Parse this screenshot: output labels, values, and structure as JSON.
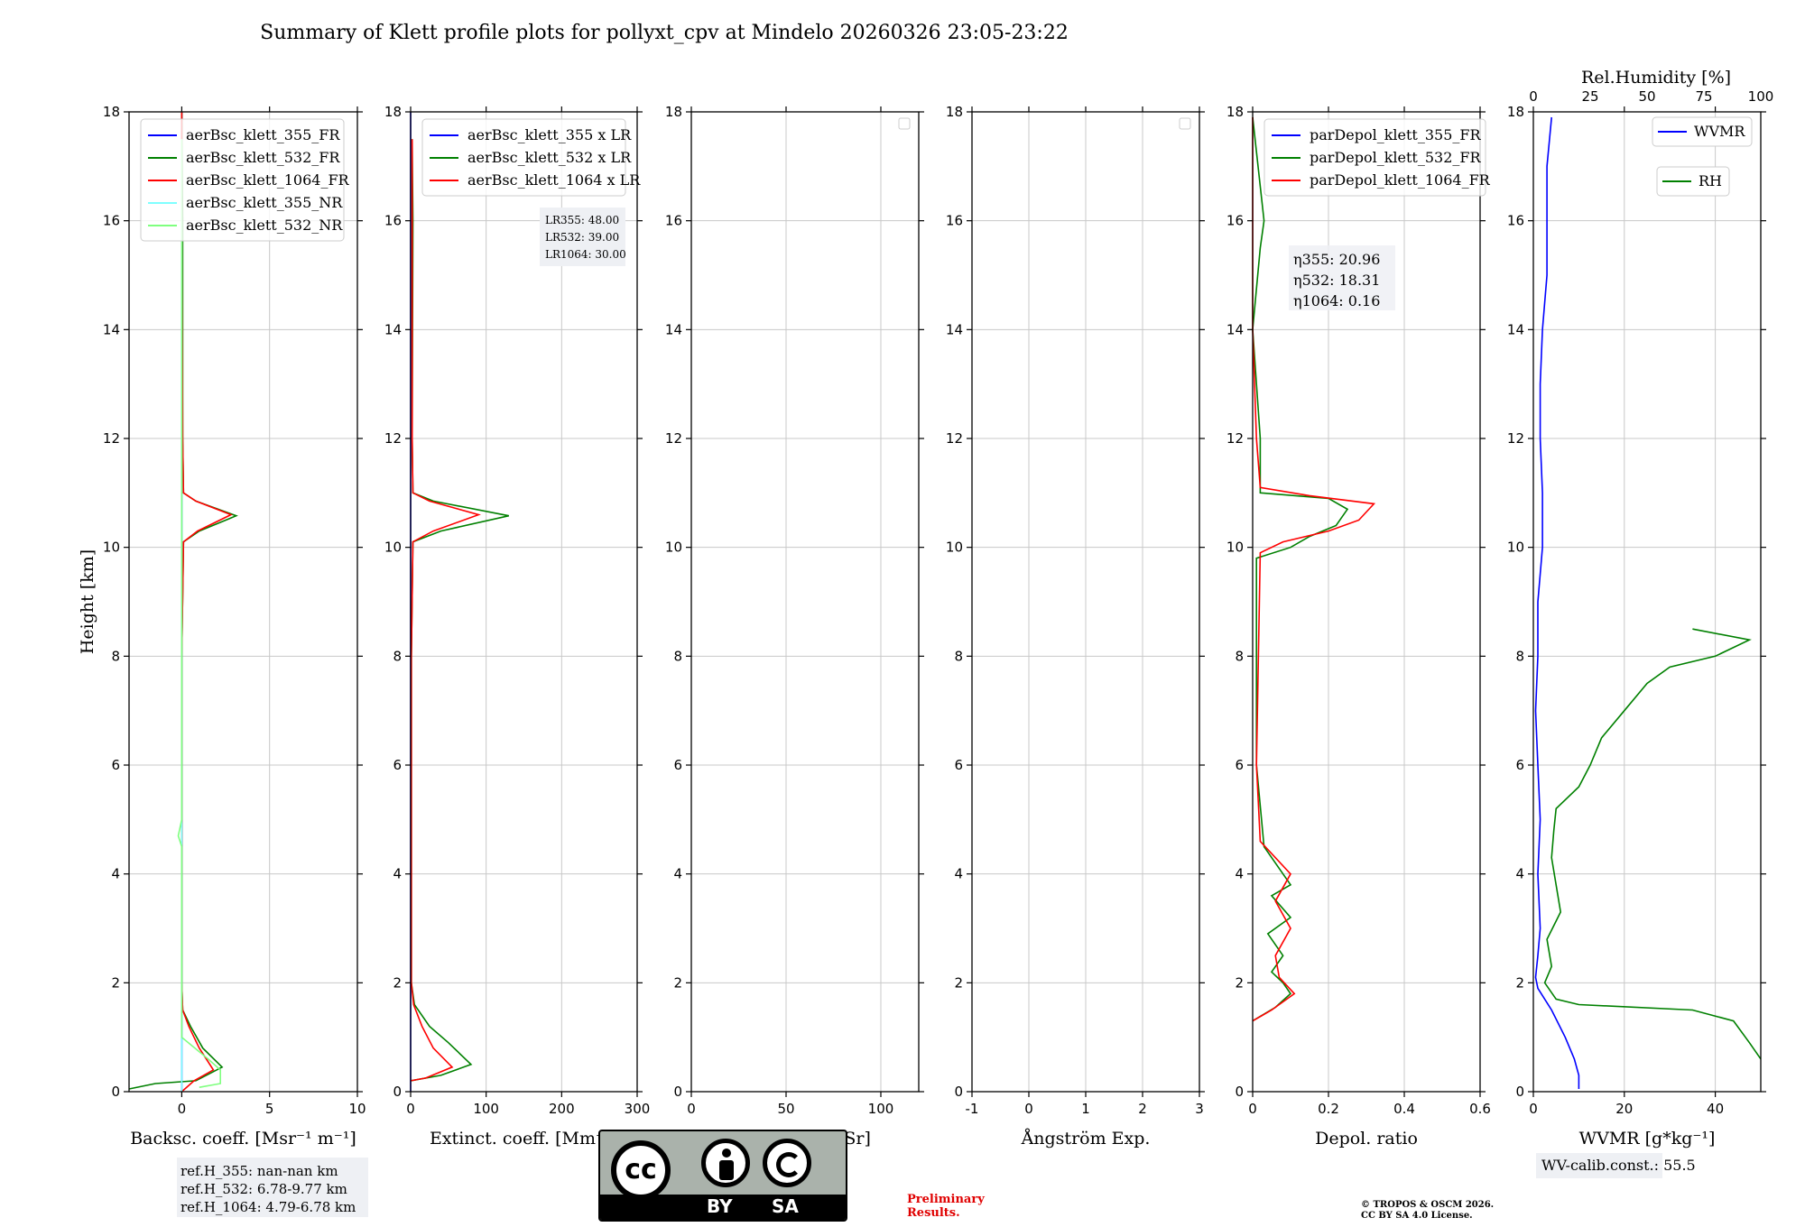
{
  "title": "Summary of Klett profile plots for pollyxt_cpv at Mindelo 20260326 23:05-23:22",
  "colors": {
    "blue": "#0000ff",
    "green": "#008000",
    "red": "#ff0000",
    "cyan": "#7fffff",
    "lightgreen": "#7fff7f",
    "grid": "#c8c8c8"
  },
  "chart_data": [
    {
      "type": "line",
      "id": "backscatter",
      "xlabel": "Backsc. coeff. [Msr⁻¹ m⁻¹]",
      "ylabel": "Height [km]",
      "xlim": [
        -3,
        10
      ],
      "ylim": [
        0,
        18
      ],
      "xticks": [
        0,
        5,
        10
      ],
      "yticks": [
        0,
        2,
        4,
        6,
        8,
        10,
        12,
        14,
        16,
        18
      ],
      "legend": {
        "position": "top-left",
        "entries": [
          "aerBsc_klett_355_FR",
          "aerBsc_klett_532_FR",
          "aerBsc_klett_1064_FR",
          "aerBsc_klett_355_NR",
          "aerBsc_klett_532_NR"
        ]
      },
      "series": [
        {
          "name": "aerBsc_klett_355_FR",
          "color": "blue",
          "points": [
            [
              0,
              18
            ],
            [
              0,
              0
            ]
          ]
        },
        {
          "name": "aerBsc_klett_532_FR",
          "color": "green",
          "points": [
            [
              0,
              18
            ],
            [
              0.05,
              16
            ],
            [
              0.05,
              12
            ],
            [
              0.1,
              11
            ],
            [
              0.8,
              10.85
            ],
            [
              3.1,
              10.58
            ],
            [
              1.0,
              10.3
            ],
            [
              0.1,
              10.1
            ],
            [
              0,
              8
            ],
            [
              0,
              2
            ],
            [
              0.05,
              1.5
            ],
            [
              0.5,
              1.2
            ],
            [
              1.2,
              0.8
            ],
            [
              2.3,
              0.45
            ],
            [
              0.8,
              0.2
            ],
            [
              -1.5,
              0.15
            ],
            [
              -3,
              0.05
            ]
          ]
        },
        {
          "name": "aerBsc_klett_1064_FR",
          "color": "red",
          "points": [
            [
              0,
              18
            ],
            [
              0,
              16
            ],
            [
              0.05,
              12
            ],
            [
              0.1,
              11
            ],
            [
              0.8,
              10.85
            ],
            [
              2.8,
              10.6
            ],
            [
              0.9,
              10.3
            ],
            [
              0.1,
              10.1
            ],
            [
              0,
              8
            ],
            [
              0,
              2
            ],
            [
              0.05,
              1.5
            ],
            [
              0.4,
              1.2
            ],
            [
              1.0,
              0.8
            ],
            [
              1.8,
              0.4
            ],
            [
              0.7,
              0.2
            ],
            [
              0,
              0
            ]
          ]
        },
        {
          "name": "aerBsc_klett_355_NR",
          "color": "cyan",
          "points": [
            [
              0,
              17.5
            ],
            [
              0,
              0
            ]
          ]
        },
        {
          "name": "aerBsc_klett_532_NR",
          "color": "lightgreen",
          "points": [
            [
              0,
              17.5
            ],
            [
              0,
              5
            ],
            [
              -0.2,
              4.7
            ],
            [
              0,
              4.5
            ],
            [
              0,
              1
            ],
            [
              1.5,
              0.6
            ],
            [
              2.2,
              0.4
            ],
            [
              2.2,
              0.15
            ],
            [
              1,
              0.08
            ]
          ]
        }
      ],
      "annotation": [
        "ref.H_355: nan-nan km",
        "ref.H_532: 6.78-9.77 km",
        "ref.H_1064: 4.79-6.78 km"
      ]
    },
    {
      "type": "line",
      "id": "extinction",
      "xlabel": "Extinct. coeff. [Mm⁻¹]",
      "xlim": [
        0,
        300
      ],
      "ylim": [
        0,
        18
      ],
      "xticks": [
        0,
        100,
        200,
        300
      ],
      "legend": {
        "position": "top-left",
        "entries": [
          "aerBsc_klett_355 x LR",
          "aerBsc_klett_532 x LR",
          "aerBsc_klett_1064 x LR"
        ]
      },
      "series": [
        {
          "name": "aerBsc_klett_355 x LR",
          "color": "blue",
          "points": [
            [
              0,
              18
            ],
            [
              0,
              0
            ]
          ]
        },
        {
          "name": "aerBsc_klett_532 x LR",
          "color": "green",
          "points": [
            [
              2,
              17.5
            ],
            [
              3,
              16
            ],
            [
              2,
              12
            ],
            [
              3,
              11
            ],
            [
              30,
              10.85
            ],
            [
              130,
              10.58
            ],
            [
              40,
              10.3
            ],
            [
              3,
              10.1
            ],
            [
              1,
              8
            ],
            [
              1,
              2
            ],
            [
              5,
              1.6
            ],
            [
              25,
              1.2
            ],
            [
              50,
              0.9
            ],
            [
              80,
              0.5
            ],
            [
              40,
              0.3
            ],
            [
              0,
              0.2
            ]
          ]
        },
        {
          "name": "aerBsc_klett_1064 x LR",
          "color": "red",
          "points": [
            [
              2,
              17.5
            ],
            [
              2,
              16
            ],
            [
              2,
              12
            ],
            [
              3,
              11
            ],
            [
              25,
              10.85
            ],
            [
              90,
              10.6
            ],
            [
              30,
              10.3
            ],
            [
              3,
              10.1
            ],
            [
              1,
              8
            ],
            [
              1,
              2
            ],
            [
              4,
              1.6
            ],
            [
              15,
              1.2
            ],
            [
              30,
              0.8
            ],
            [
              55,
              0.45
            ],
            [
              20,
              0.25
            ],
            [
              0,
              0.2
            ]
          ]
        }
      ],
      "annotation": [
        "LR355: 48.00",
        "LR532: 39.00",
        "LR1064: 30.00"
      ]
    },
    {
      "type": "line",
      "id": "lidarratio",
      "xlabel": "Lidar ratio [Sr]",
      "xlim": [
        0,
        120
      ],
      "ylim": [
        0,
        18
      ],
      "xticks": [
        0,
        50,
        100
      ],
      "series": []
    },
    {
      "type": "line",
      "id": "angstrom",
      "xlabel": "Ångström Exp.",
      "xlim": [
        -1,
        3
      ],
      "ylim": [
        0,
        18
      ],
      "xticks": [
        -1,
        0,
        1,
        2,
        3
      ],
      "series": []
    },
    {
      "type": "line",
      "id": "depol",
      "xlabel": "Depol. ratio",
      "xlim": [
        0,
        0.6
      ],
      "ylim": [
        0,
        18
      ],
      "xticks": [
        0.0,
        0.2,
        0.4,
        0.6
      ],
      "legend": {
        "position": "top-left",
        "entries": [
          "parDepol_klett_355_FR",
          "parDepol_klett_532_FR",
          "parDepol_klett_1064_FR"
        ]
      },
      "series": [
        {
          "name": "parDepol_klett_355_FR",
          "color": "blue",
          "points": []
        },
        {
          "name": "parDepol_klett_532_FR",
          "color": "green",
          "points": [
            [
              0,
              1.3
            ],
            [
              0.06,
              1.55
            ],
            [
              0.1,
              1.8
            ],
            [
              0.08,
              2.0
            ],
            [
              0.05,
              2.2
            ],
            [
              0.08,
              2.5
            ],
            [
              0.04,
              2.9
            ],
            [
              0.1,
              3.2
            ],
            [
              0.05,
              3.6
            ],
            [
              0.1,
              3.8
            ],
            [
              0.03,
              4.5
            ],
            [
              0.01,
              6
            ],
            [
              0.01,
              9.8
            ],
            [
              0.1,
              10.0
            ],
            [
              0.15,
              10.2
            ],
            [
              0.22,
              10.4
            ],
            [
              0.25,
              10.7
            ],
            [
              0.2,
              10.9
            ],
            [
              0.02,
              11
            ],
            [
              0.02,
              12
            ],
            [
              0,
              14
            ],
            [
              0.02,
              15.5
            ],
            [
              0.03,
              16
            ],
            [
              0,
              17.9
            ]
          ]
        },
        {
          "name": "parDepol_klett_1064_FR",
          "color": "red",
          "points": [
            [
              0,
              1.3
            ],
            [
              0.05,
              1.5
            ],
            [
              0.11,
              1.8
            ],
            [
              0.07,
              2.1
            ],
            [
              0.06,
              2.5
            ],
            [
              0.1,
              3.0
            ],
            [
              0.06,
              3.5
            ],
            [
              0.1,
              4.0
            ],
            [
              0.02,
              4.6
            ],
            [
              0.01,
              6
            ],
            [
              0.02,
              9.9
            ],
            [
              0.08,
              10.1
            ],
            [
              0.2,
              10.3
            ],
            [
              0.28,
              10.5
            ],
            [
              0.32,
              10.8
            ],
            [
              0.15,
              10.95
            ],
            [
              0.02,
              11.1
            ],
            [
              0.01,
              12
            ],
            [
              0,
              14
            ],
            [
              0,
              17.9
            ]
          ]
        }
      ],
      "annotation": [
        "η355: 20.96",
        "η532: 18.31",
        "η1064: 0.16"
      ]
    },
    {
      "type": "line",
      "id": "wvmr",
      "xlabel": "WVMR [g*kg⁻¹]",
      "x2label": "Rel.Humidity [%]",
      "xlim": [
        0,
        50
      ],
      "x2lim": [
        0,
        100
      ],
      "ylim": [
        0,
        18
      ],
      "xticks": [
        0,
        20,
        40
      ],
      "x2ticks": [
        0,
        25,
        50,
        75,
        100
      ],
      "legend": {
        "position": "top-right",
        "entries": [
          "WVMR",
          "RH"
        ]
      },
      "series": [
        {
          "name": "WVMR",
          "color": "blue",
          "axis": "bottom",
          "points": [
            [
              10,
              0.05
            ],
            [
              10,
              0.3
            ],
            [
              9,
              0.6
            ],
            [
              7,
              1.0
            ],
            [
              4,
              1.5
            ],
            [
              1,
              1.9
            ],
            [
              0.5,
              2.1
            ],
            [
              1,
              2.5
            ],
            [
              1.5,
              3
            ],
            [
              1,
              4
            ],
            [
              1.5,
              5
            ],
            [
              1,
              6
            ],
            [
              0.5,
              7
            ],
            [
              1,
              8
            ],
            [
              1,
              9
            ],
            [
              2,
              10
            ],
            [
              2,
              11
            ],
            [
              1.5,
              12
            ],
            [
              1.5,
              13
            ],
            [
              2,
              14
            ],
            [
              3,
              15
            ],
            [
              3,
              16
            ],
            [
              3,
              17
            ],
            [
              4,
              17.9
            ]
          ]
        },
        {
          "name": "RH",
          "color": "green",
          "axis": "top",
          "points": [
            [
              100,
              0.6
            ],
            [
              95,
              0.9
            ],
            [
              88,
              1.3
            ],
            [
              70,
              1.5
            ],
            [
              20,
              1.6
            ],
            [
              10,
              1.7
            ],
            [
              5,
              2.0
            ],
            [
              8,
              2.3
            ],
            [
              6,
              2.8
            ],
            [
              12,
              3.3
            ],
            [
              10,
              3.8
            ],
            [
              8,
              4.3
            ],
            [
              9,
              4.8
            ],
            [
              10,
              5.2
            ],
            [
              20,
              5.6
            ],
            [
              25,
              6.0
            ],
            [
              30,
              6.5
            ],
            [
              40,
              7.0
            ],
            [
              50,
              7.5
            ],
            [
              60,
              7.8
            ],
            [
              80,
              8.0
            ],
            [
              95,
              8.3
            ],
            [
              70,
              8.5
            ]
          ]
        }
      ],
      "annotation": [
        "WV-calib.const.: 55.5"
      ]
    }
  ],
  "footer": {
    "license_by": "BY",
    "license_sa": "SA",
    "license_cc": "cc",
    "preliminary": [
      "Preliminary",
      "Results."
    ],
    "copyright": [
      "© TROPOS & OSCM 2026.",
      "CC BY SA 4.0 License."
    ]
  }
}
